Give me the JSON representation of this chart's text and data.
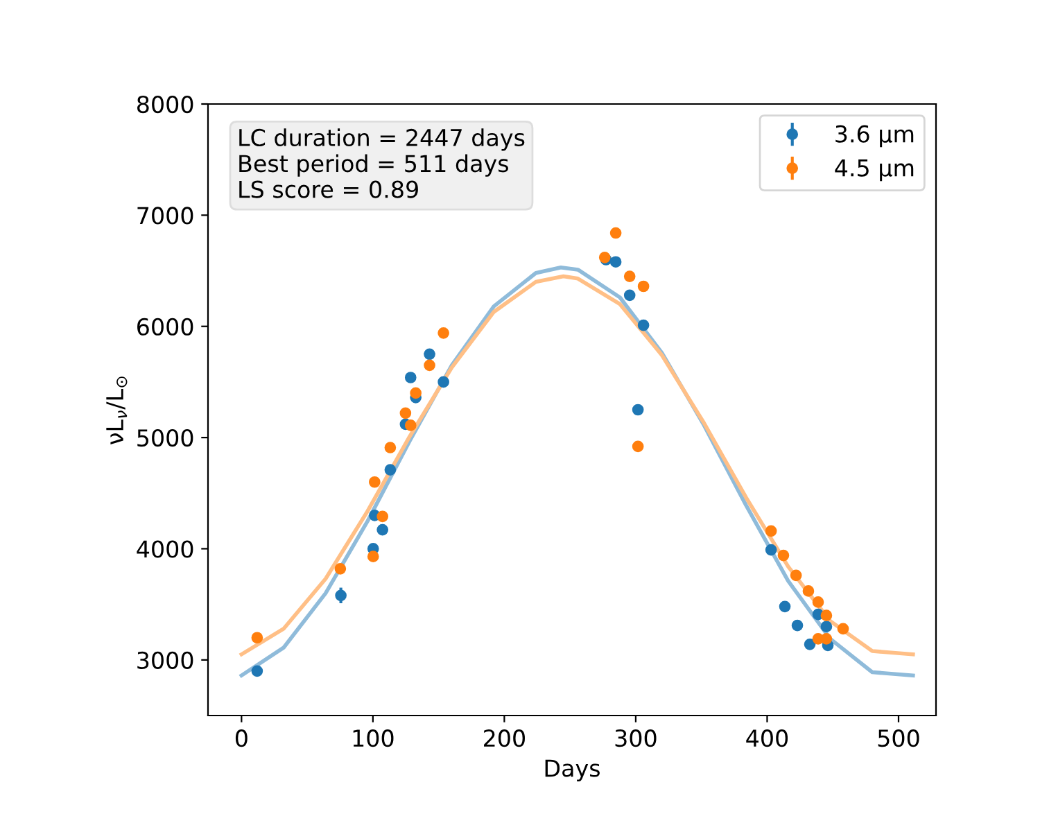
{
  "chart_data": {
    "type": "scatter",
    "xlabel": "Days",
    "ylabel": "νL$_{ν}$/L$_{⊙}$",
    "xlim": [
      -25.5,
      528.5
    ],
    "xticks": [
      0,
      100,
      200,
      300,
      400,
      500
    ],
    "ylim": [
      2500,
      8000
    ],
    "yticks": [
      3000,
      4000,
      5000,
      6000,
      7000,
      8000
    ],
    "grid": false,
    "legend": "top right",
    "annotations": [
      "LC duration = 2447 days\nBest period = 511 days\nLS score = 0.89"
    ],
    "series": [
      {
        "name": "3.6 μm",
        "color": "#1f77b4",
        "marker": "circle",
        "x": [
          11.9,
          75.6,
          100.2,
          101.3,
          107.3,
          113.2,
          124.8,
          128.7,
          132.6,
          143.1,
          153.7,
          277.4,
          284.8,
          295.4,
          305.9,
          301.7,
          403,
          413.5,
          423,
          432.5,
          438.8,
          445.1,
          446.2
        ],
        "values": [
          2900,
          3580,
          4000,
          4300,
          4170,
          4710,
          5120,
          5540,
          5360,
          5750,
          5500,
          6600,
          6580,
          6280,
          6010,
          5250,
          3990,
          3480,
          3310,
          3140,
          3410,
          3300,
          3130
        ],
        "errors": [
          null,
          70,
          null,
          null,
          null,
          null,
          null,
          null,
          null,
          null,
          null,
          null,
          null,
          null,
          null,
          null,
          null,
          null,
          null,
          null,
          null,
          null,
          null
        ]
      },
      {
        "name": "4.5 μm",
        "color": "#ff7f0e",
        "marker": "circle",
        "x": [
          11.9,
          75.2,
          100.2,
          107.3,
          101.3,
          113.2,
          124.8,
          128.7,
          132.6,
          143.1,
          153.7,
          276.4,
          284.8,
          295.4,
          305.9,
          301.7,
          403,
          412.4,
          422,
          431.4,
          438.8,
          438.8,
          445.1,
          445.1,
          457.8
        ],
        "values": [
          3200,
          3820,
          3930,
          4290,
          4600,
          4910,
          5220,
          5110,
          5400,
          5650,
          5940,
          6620,
          6840,
          6450,
          6360,
          4920,
          4160,
          3940,
          3760,
          3620,
          3520,
          3190,
          3400,
          3190,
          3280
        ]
      },
      {
        "type": "line",
        "color": "#8fbbda",
        "x": [
          0,
          32,
          64,
          96,
          128,
          160,
          192,
          224,
          243,
          256,
          288,
          320,
          352,
          384,
          416,
          448,
          480,
          511
        ],
        "values": [
          2860,
          3110,
          3600,
          4250,
          4970,
          5650,
          6180,
          6480,
          6530,
          6510,
          6260,
          5760,
          5110,
          4390,
          3710,
          3190,
          2890,
          2860
        ]
      },
      {
        "type": "line",
        "color": "#ffbf86",
        "x": [
          0,
          32,
          64,
          96,
          128,
          160,
          192,
          224,
          245,
          256,
          288,
          320,
          352,
          384,
          416,
          448,
          480,
          511
        ],
        "values": [
          3050,
          3280,
          3730,
          4340,
          5010,
          5630,
          6130,
          6400,
          6450,
          6430,
          6200,
          5740,
          5130,
          4460,
          3840,
          3350,
          3080,
          3050
        ]
      }
    ]
  }
}
